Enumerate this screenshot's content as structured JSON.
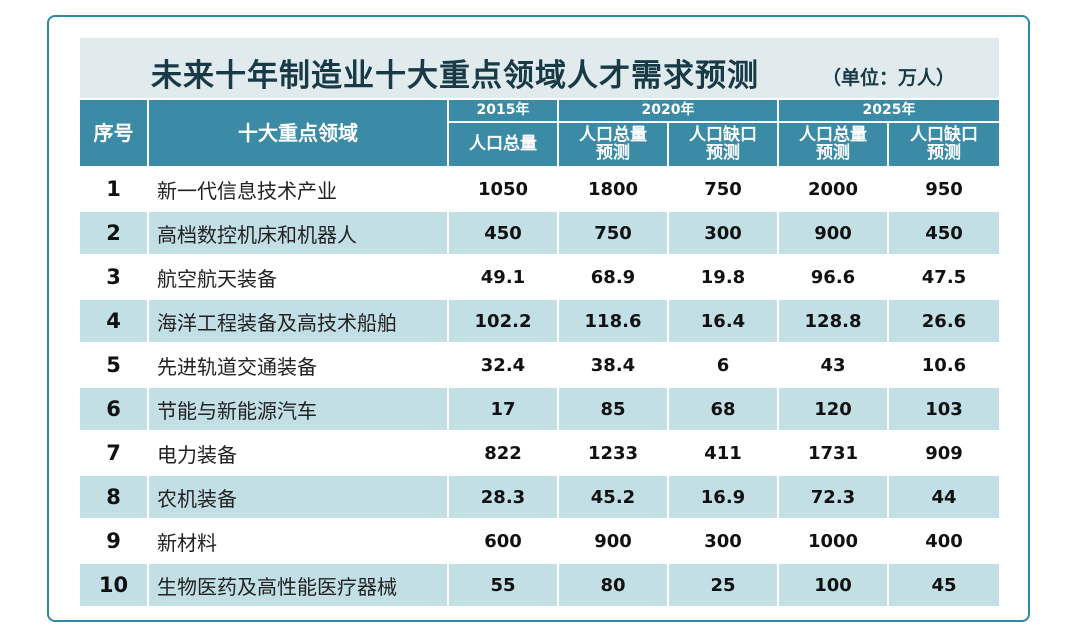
{
  "title": "未来十年制造业十大重点领域人才需求预测",
  "unit": "（单位：万人）",
  "chart_data": {
    "type": "table",
    "headers": {
      "seq": "序号",
      "field": "十大重点领域",
      "year_2015": "2015年",
      "year_2020": "2020年",
      "year_2025": "2025年",
      "cols": [
        "人口总量",
        "人口总量预测",
        "人口缺口预测",
        "人口总量预测",
        "人口缺口预测"
      ]
    },
    "rows": [
      {
        "seq": "1",
        "name": "新一代信息技术产业",
        "values": [
          "1050",
          "1800",
          "750",
          "2000",
          "950"
        ]
      },
      {
        "seq": "2",
        "name": "高档数控机床和机器人",
        "values": [
          "450",
          "750",
          "300",
          "900",
          "450"
        ]
      },
      {
        "seq": "3",
        "name": "航空航天装备",
        "values": [
          "49.1",
          "68.9",
          "19.8",
          "96.6",
          "47.5"
        ]
      },
      {
        "seq": "4",
        "name": "海洋工程装备及高技术船舶",
        "values": [
          "102.2",
          "118.6",
          "16.4",
          "128.8",
          "26.6"
        ]
      },
      {
        "seq": "5",
        "name": "先进轨道交通装备",
        "values": [
          "32.4",
          "38.4",
          "6",
          "43",
          "10.6"
        ]
      },
      {
        "seq": "6",
        "name": "节能与新能源汽车",
        "values": [
          "17",
          "85",
          "68",
          "120",
          "103"
        ]
      },
      {
        "seq": "7",
        "name": "电力装备",
        "values": [
          "822",
          "1233",
          "411",
          "1731",
          "909"
        ]
      },
      {
        "seq": "8",
        "name": "农机装备",
        "values": [
          "28.3",
          "45.2",
          "16.9",
          "72.3",
          "44"
        ]
      },
      {
        "seq": "9",
        "name": "新材料",
        "values": [
          "600",
          "900",
          "300",
          "1000",
          "400"
        ]
      },
      {
        "seq": "10",
        "name": "生物医药及高性能医疗器械",
        "values": [
          "55",
          "80",
          "25",
          "100",
          "45"
        ]
      }
    ]
  }
}
